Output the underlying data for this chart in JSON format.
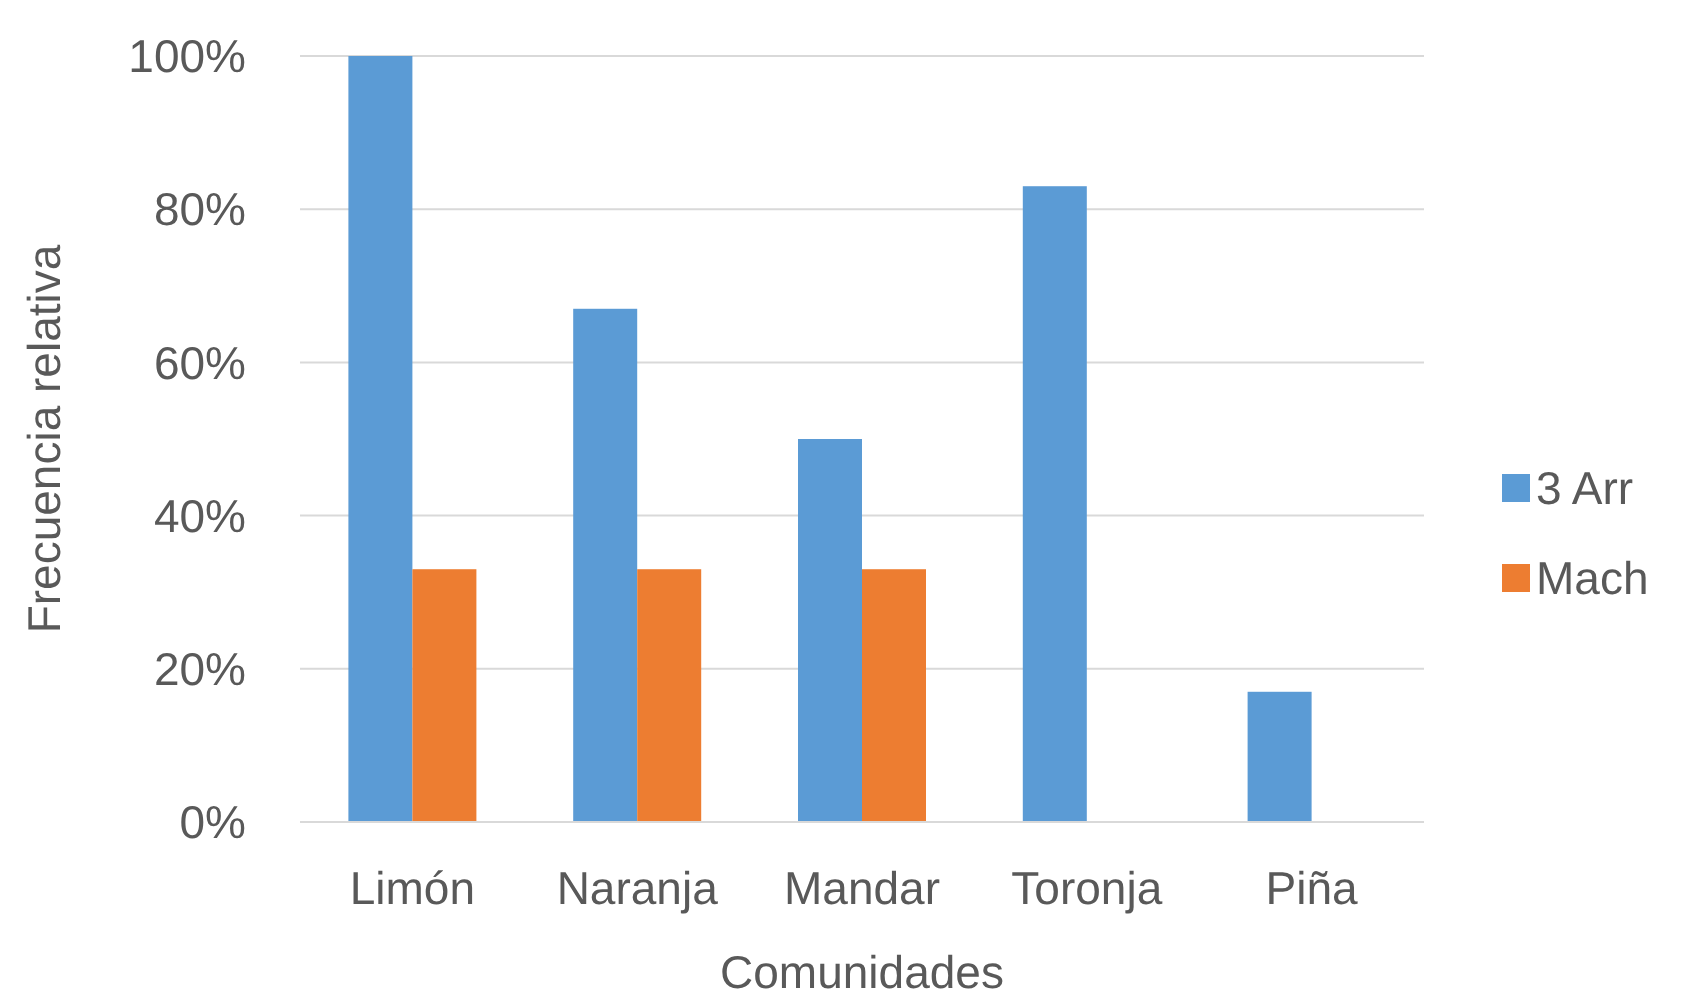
{
  "chart_data": {
    "type": "bar",
    "xlabel": "Comunidades",
    "ylabel": "Frecuencia relativa",
    "categories": [
      "Limón",
      "Naranja",
      "Mandar",
      "Toronja",
      "Piña"
    ],
    "series": [
      {
        "name": "3 Arr",
        "color": "#5b9bd5",
        "values": [
          100,
          67,
          50,
          83,
          17
        ]
      },
      {
        "name": "Mach",
        "color": "#ed7d31",
        "values": [
          33,
          33,
          33,
          null,
          null
        ]
      }
    ],
    "ylim": [
      0,
      100
    ],
    "yticks": [
      {
        "value": 0,
        "label": "0%"
      },
      {
        "value": 20,
        "label": "20%"
      },
      {
        "value": 40,
        "label": "40%"
      },
      {
        "value": 60,
        "label": "60%"
      },
      {
        "value": 80,
        "label": "80%"
      },
      {
        "value": 100,
        "label": "100%"
      }
    ],
    "grid": "y",
    "legend": "right"
  }
}
